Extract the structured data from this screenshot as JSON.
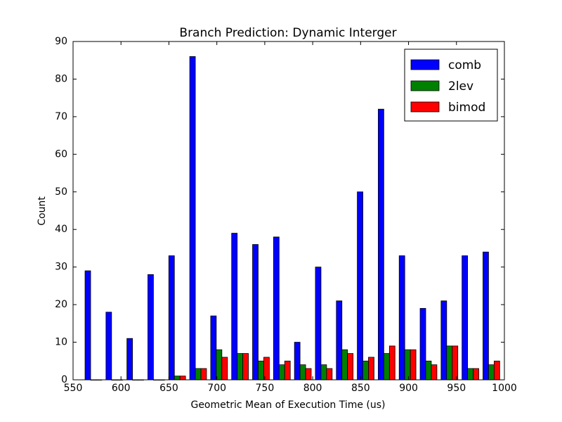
{
  "chart_data": {
    "type": "histogram",
    "title": "Branch Prediction: Dynamic Interger",
    "xlabel": "Geometric Mean of Execution Time (us)",
    "ylabel": "Count",
    "bins": [
      560.3,
      582.15,
      604.0,
      625.85,
      647.7,
      669.55,
      691.4,
      713.25,
      735.1,
      756.95,
      778.8,
      800.65,
      822.5,
      844.35,
      866.2,
      888.05,
      909.9,
      931.75,
      953.6,
      975.45,
      997.3
    ],
    "series": [
      {
        "name": "comb",
        "color": "#0000ff",
        "values": [
          29,
          18,
          11,
          28,
          33,
          86,
          17,
          39,
          36,
          38,
          10,
          30,
          21,
          50,
          72,
          33,
          19,
          21,
          33,
          34
        ]
      },
      {
        "name": "2lev",
        "color": "#008000",
        "values": [
          0,
          0,
          0,
          0,
          1,
          3,
          8,
          7,
          5,
          4,
          4,
          4,
          8,
          5,
          7,
          8,
          5,
          9,
          3,
          4
        ]
      },
      {
        "name": "bimod",
        "color": "#ff0000",
        "values": [
          0,
          0,
          0,
          0,
          1,
          3,
          6,
          7,
          6,
          5,
          3,
          3,
          7,
          6,
          9,
          8,
          4,
          9,
          3,
          5
        ]
      }
    ],
    "xlim": [
      550,
      1000
    ],
    "xticks": [
      550,
      600,
      650,
      700,
      750,
      800,
      850,
      900,
      950,
      1000
    ],
    "ylim": [
      0,
      90
    ],
    "yticks": [
      0,
      10,
      20,
      30,
      40,
      50,
      60,
      70,
      80,
      90
    ],
    "legend": "upper right",
    "grid": false
  }
}
